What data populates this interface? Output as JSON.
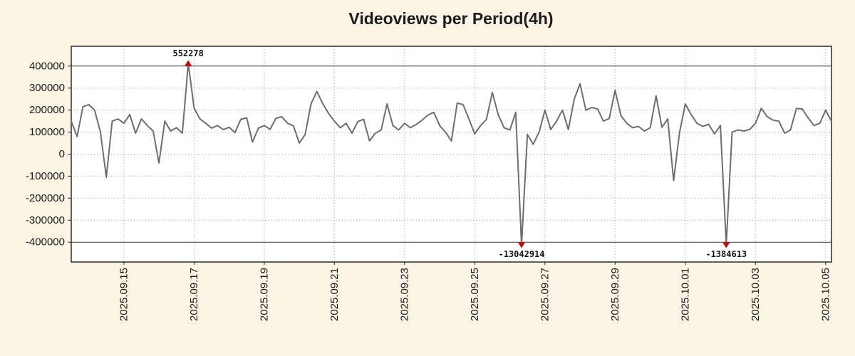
{
  "page": {
    "background_color": "#fcf4e4"
  },
  "chart_data": {
    "type": "line",
    "title": "Videoviews per Period(4h)",
    "xlabel": "",
    "ylabel": "",
    "ylim": [
      -490000,
      490000
    ],
    "y_ticks": [
      400000,
      300000,
      200000,
      100000,
      0,
      -100000,
      -200000,
      -300000,
      -400000
    ],
    "clip_lines": [
      400000,
      -400000
    ],
    "clip_display_value": 412000,
    "grid": "dotted",
    "x_tick_labels": [
      "2025.09.15",
      "2025.09.17",
      "2025.09.19",
      "2025.09.21",
      "2025.09.23",
      "2025.09.25",
      "2025.09.27",
      "2025.09.29",
      "2025.10.01",
      "2025.10.03",
      "2025.10.05"
    ],
    "x_tick_indices": [
      9,
      21,
      33,
      45,
      57,
      69,
      81,
      93,
      105,
      117,
      129
    ],
    "period_hours": 4,
    "values": [
      150000,
      80000,
      215000,
      225000,
      200000,
      100000,
      -105000,
      150000,
      160000,
      140000,
      180000,
      95000,
      160000,
      130000,
      105000,
      -40000,
      150000,
      105000,
      120000,
      95000,
      552278,
      210000,
      160000,
      140000,
      118000,
      130000,
      112000,
      122000,
      98000,
      158000,
      165000,
      55000,
      118000,
      130000,
      113000,
      163000,
      170000,
      140000,
      128000,
      50000,
      90000,
      228000,
      285000,
      230000,
      185000,
      150000,
      120000,
      140000,
      95000,
      148000,
      158000,
      60000,
      95000,
      110000,
      228000,
      130000,
      110000,
      140000,
      120000,
      135000,
      155000,
      178000,
      190000,
      130000,
      100000,
      60000,
      232000,
      225000,
      160000,
      92000,
      130000,
      158000,
      280000,
      180000,
      120000,
      110000,
      190000,
      -13042914,
      90000,
      45000,
      100000,
      200000,
      112000,
      150000,
      200000,
      112000,
      250000,
      320000,
      200000,
      212000,
      205000,
      150000,
      162000,
      290000,
      175000,
      140000,
      120000,
      126000,
      105000,
      120000,
      265000,
      122000,
      160000,
      -120000,
      95000,
      228000,
      180000,
      140000,
      126000,
      136000,
      92000,
      130000,
      -1384613,
      100000,
      110000,
      105000,
      112000,
      140000,
      208000,
      170000,
      155000,
      150000,
      95000,
      110000,
      208000,
      205000,
      165000,
      130000,
      140000,
      200000,
      150000
    ],
    "annotations": {
      "max": {
        "index": 20,
        "value": 552278,
        "label": "552278"
      },
      "mins": [
        {
          "index": 77,
          "value": -13042914,
          "label": "-13042914"
        },
        {
          "index": 112,
          "value": -1384613,
          "label": "-1384613"
        }
      ]
    },
    "colors": {
      "line": "#6e6e6e",
      "marker": "#cc0000",
      "grid": "#9e9e9e",
      "clip_line": "#3a3a3a",
      "frame": "#2b2b2b",
      "plot_background": "#ffffff",
      "text": "#1a1a1a"
    }
  }
}
